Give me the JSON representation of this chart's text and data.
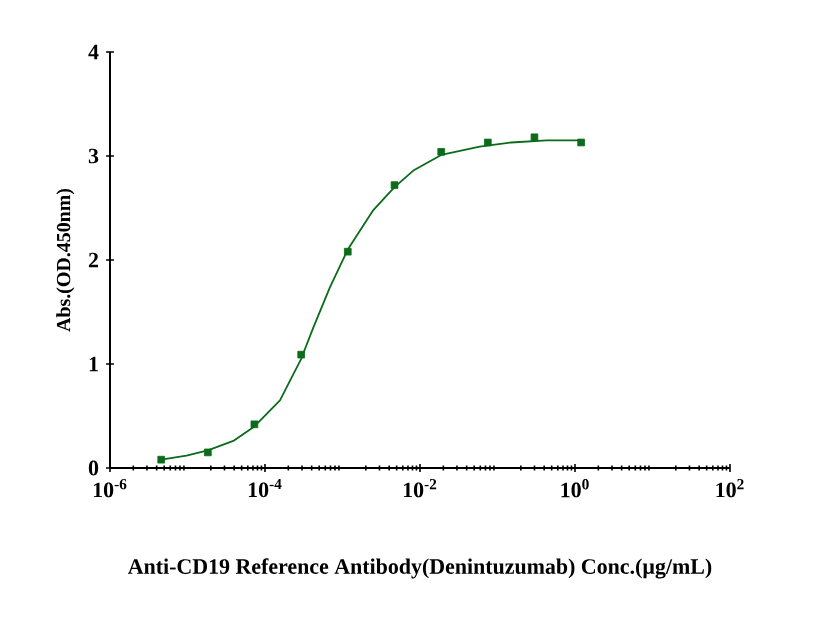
{
  "chart_data": {
    "type": "scatter",
    "log": "x",
    "xlabel": "Anti-CD19 Reference Antibody(Denintuzumab) Conc.(µg/mL)",
    "ylabel": "Abs.(OD.450nm)",
    "xlim": [
      1e-06,
      100
    ],
    "ylim": [
      0,
      4
    ],
    "yticks": [
      0,
      1,
      2,
      3,
      4
    ],
    "xticks": [
      {
        "value": 1e-06,
        "label": "10$^{-6}$"
      },
      {
        "value": 0.0001,
        "label": "10$^{-4}$"
      },
      {
        "value": 0.01,
        "label": "10$^{-2}$"
      },
      {
        "value": 1,
        "label": "10$^{0}$"
      },
      {
        "value": 100,
        "label": "10$^{2}$"
      }
    ],
    "grid": false,
    "series": [
      {
        "marker": "square",
        "color": "#0b6b1a",
        "x": [
          4.58e-06,
          1.83e-05,
          7.3e-05,
          0.000293,
          0.00117,
          0.00469,
          0.0188,
          0.075,
          0.3,
          1.2
        ],
        "values": [
          0.08,
          0.15,
          0.42,
          1.09,
          2.08,
          2.72,
          3.04,
          3.13,
          3.18,
          3.13
        ]
      },
      {
        "type": "line",
        "marker": "none",
        "line_style": "solid",
        "color": "#0b6b1a",
        "x": [
          4.58e-06,
          9.7e-06,
          1.83e-05,
          3.9e-05,
          7.3e-05,
          0.000156,
          0.000293,
          0.00042,
          0.00069,
          0.00117,
          0.0025,
          0.00469,
          0.0082,
          0.0188,
          0.059,
          0.15,
          0.43,
          1.2
        ],
        "values": [
          0.08,
          0.12,
          0.17,
          0.26,
          0.4,
          0.65,
          1.05,
          1.35,
          1.74,
          2.1,
          2.48,
          2.7,
          2.86,
          3.01,
          3.09,
          3.13,
          3.15,
          3.15
        ]
      }
    ]
  }
}
